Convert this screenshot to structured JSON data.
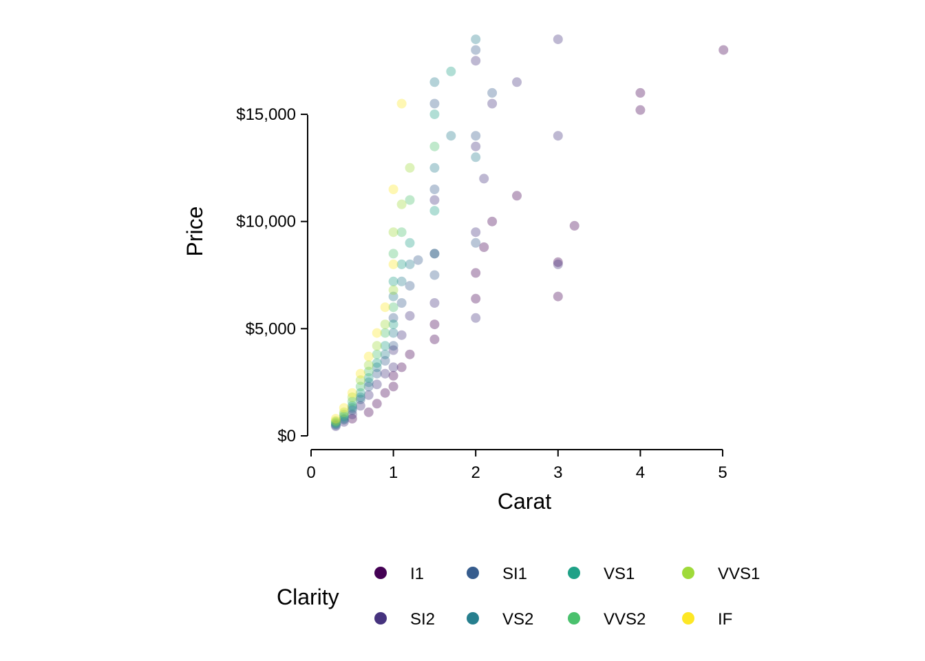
{
  "chart_data": {
    "type": "scatter",
    "title": "",
    "xlabel": "Carat",
    "ylabel": "Price",
    "xlim": [
      0,
      5
    ],
    "ylim": [
      0,
      18823
    ],
    "x_ticks": [
      0,
      1,
      2,
      3,
      4,
      5
    ],
    "x_tick_labels": [
      "0",
      "1",
      "2",
      "3",
      "4",
      "5"
    ],
    "y_ticks": [
      0,
      5000,
      10000,
      15000
    ],
    "y_tick_labels": [
      "$0",
      "$5,000",
      "$10,000",
      "$15,000"
    ],
    "grid": false,
    "legend": {
      "title": "Clarity",
      "placement": "bottom",
      "entries": [
        "I1",
        "SI2",
        "SI1",
        "VS2",
        "VS1",
        "VVS2",
        "VVS1",
        "IF"
      ]
    },
    "colors": {
      "I1": "#440154",
      "SI2": "#46337E",
      "SI1": "#365C8D",
      "VS2": "#277F8E",
      "VS1": "#1FA187",
      "VVS2": "#4AC16D",
      "VVS1": "#9FDA3A",
      "IF": "#FDE725"
    },
    "point_opacity": 0.08,
    "series": [
      {
        "name": "I1",
        "x": [
          0.5,
          0.7,
          0.8,
          0.9,
          1.0,
          1.0,
          1.1,
          1.2,
          1.5,
          1.5,
          2.0,
          2.0,
          2.1,
          2.2,
          2.5,
          3.0,
          3.0,
          3.2,
          4.0,
          4.0,
          5.01
        ],
        "y": [
          800,
          1100,
          1500,
          2000,
          2300,
          2800,
          3200,
          3800,
          4500,
          5200,
          6400,
          7600,
          8800,
          10000,
          11200,
          6500,
          8100,
          9800,
          15200,
          16000,
          18000
        ]
      },
      {
        "name": "SI2",
        "x": [
          0.3,
          0.4,
          0.5,
          0.6,
          0.7,
          0.8,
          0.9,
          1.0,
          1.0,
          1.1,
          1.2,
          1.5,
          1.5,
          1.5,
          2.0,
          2.0,
          2.0,
          2.0,
          2.1,
          2.2,
          2.5,
          3.0,
          3.0,
          3.0
        ],
        "y": [
          450,
          650,
          1000,
          1400,
          1900,
          2400,
          2900,
          3200,
          4000,
          4700,
          5600,
          6200,
          8500,
          11000,
          5500,
          9500,
          13500,
          17500,
          12000,
          15500,
          16500,
          8000,
          14000,
          18500
        ]
      },
      {
        "name": "SI1",
        "x": [
          0.3,
          0.4,
          0.5,
          0.6,
          0.7,
          0.8,
          0.9,
          1.0,
          1.0,
          1.1,
          1.2,
          1.3,
          1.5,
          1.5,
          1.5,
          2.0,
          2.0,
          2.0,
          2.2
        ],
        "y": [
          500,
          750,
          1200,
          1700,
          2300,
          2900,
          3500,
          4200,
          5500,
          6200,
          7000,
          8200,
          7500,
          11500,
          15500,
          9000,
          14000,
          18000,
          16000
        ]
      },
      {
        "name": "VS2",
        "x": [
          0.3,
          0.4,
          0.5,
          0.6,
          0.7,
          0.8,
          0.9,
          1.0,
          1.0,
          1.1,
          1.2,
          1.5,
          1.5,
          1.5,
          1.7,
          2.0,
          2.0
        ],
        "y": [
          550,
          800,
          1300,
          1800,
          2500,
          3200,
          3800,
          4800,
          6500,
          7200,
          8000,
          8500,
          12500,
          16500,
          14000,
          13000,
          18500
        ]
      },
      {
        "name": "VS1",
        "x": [
          0.3,
          0.4,
          0.5,
          0.6,
          0.7,
          0.8,
          0.9,
          1.0,
          1.0,
          1.1,
          1.2,
          1.5,
          1.5,
          1.7
        ],
        "y": [
          600,
          900,
          1400,
          2000,
          2700,
          3400,
          4200,
          5200,
          7200,
          8000,
          9000,
          10500,
          15000,
          17000
        ]
      },
      {
        "name": "VVS2",
        "x": [
          0.3,
          0.4,
          0.5,
          0.6,
          0.7,
          0.8,
          0.9,
          1.0,
          1.0,
          1.1,
          1.2,
          1.5
        ],
        "y": [
          650,
          1000,
          1600,
          2300,
          3000,
          3800,
          4800,
          6000,
          8500,
          9500,
          11000,
          13500
        ]
      },
      {
        "name": "VVS1",
        "x": [
          0.3,
          0.4,
          0.5,
          0.6,
          0.7,
          0.8,
          0.9,
          1.0,
          1.0,
          1.1,
          1.2
        ],
        "y": [
          700,
          1100,
          1800,
          2600,
          3300,
          4200,
          5200,
          6800,
          9500,
          10800,
          12500
        ]
      },
      {
        "name": "IF",
        "x": [
          0.3,
          0.4,
          0.5,
          0.6,
          0.7,
          0.8,
          0.9,
          1.0,
          1.0,
          1.1
        ],
        "y": [
          800,
          1300,
          2000,
          2900,
          3700,
          4800,
          6000,
          8000,
          11500,
          15500
        ]
      }
    ]
  }
}
